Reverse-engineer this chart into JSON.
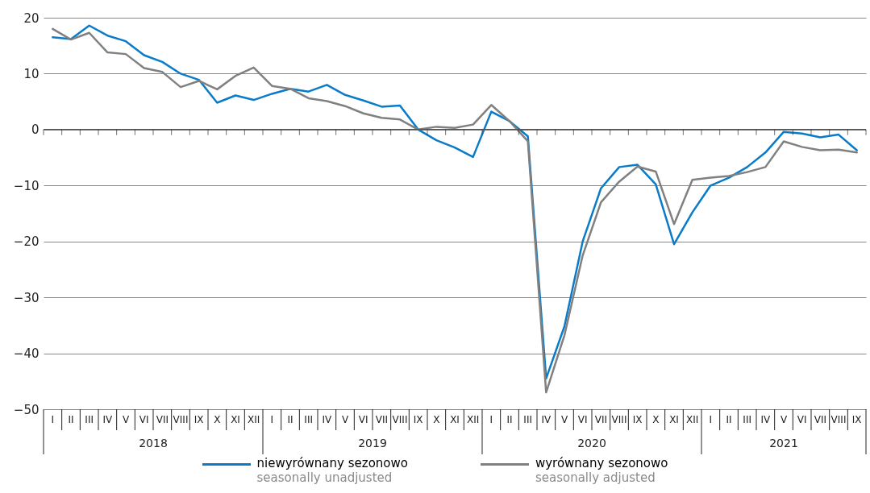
{
  "chart_data": {
    "type": "line",
    "categories": [
      "I",
      "II",
      "III",
      "IV",
      "V",
      "VI",
      "VII",
      "VIII",
      "IX",
      "X",
      "XI",
      "XII",
      "I",
      "II",
      "III",
      "IV",
      "V",
      "VI",
      "VII",
      "VIII",
      "IX",
      "X",
      "XI",
      "XII",
      "I",
      "II",
      "III",
      "IV",
      "V",
      "VI",
      "VII",
      "VIII",
      "IX",
      "X",
      "XI",
      "XII",
      "I",
      "II",
      "III",
      "IV",
      "V",
      "VI",
      "VII",
      "VIII",
      "IX"
    ],
    "series": [
      {
        "name": "niewyrównany sezonowo\nseasonally unadjusted",
        "color": "#0a7bc8",
        "values": [
          16.5,
          16.2,
          18.6,
          16.8,
          15.8,
          13.3,
          12.1,
          10,
          8.9,
          4.8,
          6.1,
          5.3,
          6.4,
          7.3,
          6.8,
          8,
          6.2,
          5.2,
          4.1,
          4.3,
          0,
          -1.9,
          -3.2,
          -4.9,
          3.2,
          1.5,
          -1.2,
          -44.5,
          -35.2,
          -20,
          -10.5,
          -6.7,
          -6.3,
          -9.8,
          -20.5,
          -14.8,
          -10,
          -8.6,
          -6.7,
          -4.1,
          -0.4,
          -0.7,
          -1.4,
          -0.9,
          -3.7
        ]
      },
      {
        "name": "wyrównany sezonowo\nseasonally adjusted",
        "color": "#808080",
        "values": [
          18,
          16.1,
          17.3,
          13.8,
          13.5,
          11,
          10.3,
          7.6,
          8.7,
          7.2,
          9.6,
          11.1,
          7.8,
          7.3,
          5.6,
          5.1,
          4.2,
          2.9,
          2.1,
          1.8,
          0,
          0.5,
          0.3,
          0.9,
          4.4,
          1.5,
          -2.1,
          -47,
          -36.8,
          -22.5,
          -13,
          -9.3,
          -6.6,
          -7.5,
          -16.9,
          -9,
          -8.6,
          -8.3,
          -7.6,
          -6.7,
          -2.1,
          -3.1,
          -3.7,
          -3.6,
          -4.1
        ]
      }
    ],
    "annotations": [
      "2018",
      "2019",
      "2020",
      "2021"
    ],
    "ylim": [
      -50,
      20
    ],
    "yticks": [
      -50,
      -40,
      -30,
      -20,
      -10,
      0,
      10,
      20
    ],
    "grid": "y",
    "legend": "bottom",
    "line_style": "solid",
    "marker": "none"
  }
}
